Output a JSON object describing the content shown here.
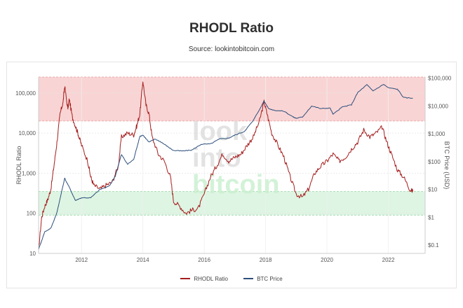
{
  "page": {
    "title": "RHODL Ratio",
    "subtitle": "Source: lookintobitcoin.com"
  },
  "watermark": [
    "look",
    "into",
    "bitcoin"
  ],
  "colors": {
    "rhodl": "#a51d1d",
    "btc": "#2c4f7c",
    "upper_band": "#f7c5c5",
    "lower_band": "#d3f2d9",
    "watermark_gray": "#d8d8d8",
    "watermark_green": "#c9f0cf"
  },
  "chart_data": {
    "type": "line",
    "title": "RHODL Ratio",
    "grid": true,
    "legend_position": "bottom",
    "x_ticks": [
      "2012",
      "2014",
      "2016",
      "2018",
      "2020",
      "2022"
    ],
    "xlim": [
      2010.6,
      2023.2
    ],
    "left_axis": {
      "label": "RHODL Ratio",
      "scale": "log",
      "ylim": [
        10,
        250000
      ],
      "ticks": [
        {
          "v": 10,
          "t": "10"
        },
        {
          "v": 100,
          "t": "100"
        },
        {
          "v": 1000,
          "t": "1,000"
        },
        {
          "v": 10000,
          "t": "10,000"
        },
        {
          "v": 100000,
          "t": "100,000"
        }
      ]
    },
    "right_axis": {
      "label": "BTC Price (USD)",
      "scale": "log",
      "ylim": [
        0.05,
        110000
      ],
      "ticks": [
        {
          "v": 0.1,
          "t": "$0.1"
        },
        {
          "v": 1,
          "t": "$1"
        },
        {
          "v": 10,
          "t": "$10"
        },
        {
          "v": 100,
          "t": "$100"
        },
        {
          "v": 1000,
          "t": "$1,000"
        },
        {
          "v": 10000,
          "t": "$10,000"
        },
        {
          "v": 100000,
          "t": "$100,000"
        }
      ]
    },
    "bands": [
      {
        "name": "upper",
        "from": 20000,
        "to": 250000
      },
      {
        "name": "lower",
        "from": 90,
        "to": 350
      }
    ],
    "series": [
      {
        "name": "RHODL Ratio",
        "axis": "left",
        "x": [
          2010.6,
          2010.7,
          2010.8,
          2010.9,
          2011.0,
          2011.1,
          2011.2,
          2011.3,
          2011.4,
          2011.45,
          2011.55,
          2011.6,
          2011.7,
          2011.8,
          2011.9,
          2012.0,
          2012.2,
          2012.3,
          2012.4,
          2012.6,
          2012.8,
          2013.0,
          2013.2,
          2013.3,
          2013.5,
          2013.7,
          2013.8,
          2013.9,
          2014.0,
          2014.1,
          2014.2,
          2014.3,
          2014.5,
          2014.7,
          2014.9,
          2015.0,
          2015.2,
          2015.4,
          2015.6,
          2015.8,
          2016.0,
          2016.2,
          2016.4,
          2016.6,
          2016.8,
          2017.0,
          2017.2,
          2017.4,
          2017.6,
          2017.8,
          2017.95,
          2018.05,
          2018.2,
          2018.4,
          2018.6,
          2018.8,
          2019.0,
          2019.2,
          2019.4,
          2019.6,
          2019.8,
          2020.0,
          2020.2,
          2020.4,
          2020.6,
          2020.8,
          2021.0,
          2021.2,
          2021.4,
          2021.6,
          2021.8,
          2021.95,
          2022.1,
          2022.3,
          2022.5,
          2022.7,
          2022.8
        ],
        "y": [
          12,
          80,
          150,
          220,
          400,
          1500,
          6000,
          30000,
          60000,
          150000,
          40000,
          70000,
          25000,
          15000,
          9000,
          5000,
          2000,
          800,
          500,
          400,
          500,
          600,
          1500,
          8000,
          10000,
          9000,
          15000,
          30000,
          200000,
          50000,
          30000,
          8000,
          3000,
          2000,
          800,
          200,
          150,
          100,
          120,
          130,
          300,
          800,
          1500,
          3000,
          2000,
          2500,
          3000,
          5000,
          8000,
          20000,
          60000,
          30000,
          10000,
          5000,
          2500,
          800,
          300,
          250,
          400,
          1000,
          1500,
          2000,
          3000,
          2000,
          2500,
          4000,
          6000,
          12000,
          8000,
          10000,
          14000,
          6000,
          3000,
          1200,
          800,
          400,
          350
        ]
      },
      {
        "name": "BTC Price",
        "axis": "right",
        "x": [
          2010.6,
          2010.8,
          2011.0,
          2011.2,
          2011.45,
          2011.6,
          2011.8,
          2012.0,
          2012.3,
          2012.6,
          2012.9,
          2013.1,
          2013.3,
          2013.5,
          2013.7,
          2013.9,
          2014.0,
          2014.2,
          2014.4,
          2014.6,
          2014.8,
          2015.0,
          2015.3,
          2015.6,
          2015.9,
          2016.2,
          2016.5,
          2016.8,
          2017.0,
          2017.3,
          2017.6,
          2017.95,
          2018.1,
          2018.3,
          2018.6,
          2018.9,
          2019.0,
          2019.2,
          2019.5,
          2019.8,
          2020.1,
          2020.2,
          2020.5,
          2020.8,
          2021.0,
          2021.3,
          2021.5,
          2021.85,
          2022.0,
          2022.3,
          2022.5,
          2022.8
        ],
        "y": [
          0.07,
          0.3,
          0.4,
          1.5,
          25,
          12,
          4,
          5,
          5,
          10,
          13,
          30,
          180,
          80,
          120,
          800,
          900,
          500,
          650,
          500,
          350,
          250,
          240,
          260,
          420,
          430,
          650,
          700,
          900,
          1200,
          3000,
          15000,
          8000,
          7000,
          6500,
          4000,
          3600,
          4000,
          10000,
          8000,
          8500,
          5000,
          9200,
          11000,
          30000,
          58000,
          35000,
          60000,
          45000,
          40000,
          20000,
          19000
        ]
      }
    ]
  }
}
